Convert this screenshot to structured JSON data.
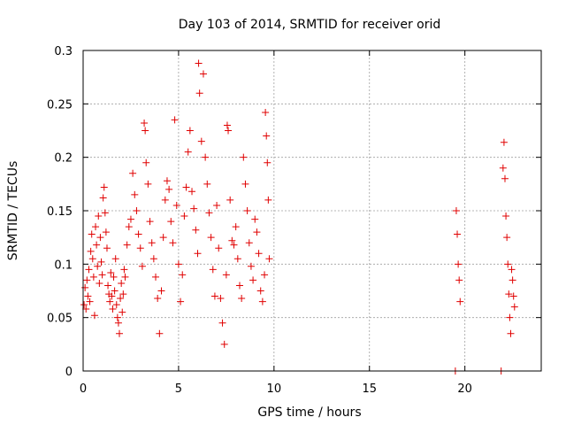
{
  "chart_data": {
    "type": "scatter",
    "title": "Day 103 of 2014, SRMTID for receiver orid",
    "xlabel": "GPS time / hours",
    "ylabel": "SRMTID / TECUs",
    "xlim": [
      0,
      24
    ],
    "ylim": [
      0,
      0.3
    ],
    "xticks": [
      "0",
      "5",
      "10",
      "15",
      "20"
    ],
    "yticks": [
      "0",
      "0.05",
      "0.1",
      "0.15",
      "0.2",
      "0.25",
      "0.3"
    ],
    "grid": true,
    "marker": "plus",
    "color": "#e00000",
    "series": [
      {
        "points": [
          [
            0.05,
            0.062
          ],
          [
            0.1,
            0.078
          ],
          [
            0.15,
            0.058
          ],
          [
            0.2,
            0.085
          ],
          [
            0.25,
            0.07
          ],
          [
            0.3,
            0.095
          ],
          [
            0.35,
            0.065
          ],
          [
            0.4,
            0.112
          ],
          [
            0.45,
            0.128
          ],
          [
            0.5,
            0.105
          ],
          [
            0.55,
            0.088
          ],
          [
            0.6,
            0.052
          ],
          [
            0.65,
            0.135
          ],
          [
            0.7,
            0.118
          ],
          [
            0.75,
            0.098
          ],
          [
            0.8,
            0.145
          ],
          [
            0.85,
            0.082
          ],
          [
            0.9,
            0.125
          ],
          [
            0.95,
            0.102
          ],
          [
            1.0,
            0.09
          ],
          [
            1.05,
            0.162
          ],
          [
            1.1,
            0.172
          ],
          [
            1.15,
            0.148
          ],
          [
            1.2,
            0.13
          ],
          [
            1.25,
            0.115
          ],
          [
            1.3,
            0.08
          ],
          [
            1.35,
            0.072
          ],
          [
            1.4,
            0.065
          ],
          [
            1.45,
            0.092
          ],
          [
            1.5,
            0.07
          ],
          [
            1.55,
            0.058
          ],
          [
            1.6,
            0.088
          ],
          [
            1.65,
            0.075
          ],
          [
            1.7,
            0.105
          ],
          [
            1.75,
            0.062
          ],
          [
            1.8,
            0.05
          ],
          [
            1.85,
            0.045
          ],
          [
            1.9,
            0.035
          ],
          [
            1.95,
            0.068
          ],
          [
            2.0,
            0.082
          ],
          [
            2.05,
            0.055
          ],
          [
            2.1,
            0.072
          ],
          [
            2.15,
            0.095
          ],
          [
            2.2,
            0.088
          ],
          [
            2.3,
            0.118
          ],
          [
            2.4,
            0.135
          ],
          [
            2.5,
            0.142
          ],
          [
            2.6,
            0.185
          ],
          [
            2.7,
            0.165
          ],
          [
            2.8,
            0.15
          ],
          [
            2.9,
            0.128
          ],
          [
            3.0,
            0.115
          ],
          [
            3.1,
            0.098
          ],
          [
            3.2,
            0.232
          ],
          [
            3.25,
            0.225
          ],
          [
            3.3,
            0.195
          ],
          [
            3.4,
            0.175
          ],
          [
            3.5,
            0.14
          ],
          [
            3.6,
            0.12
          ],
          [
            3.7,
            0.105
          ],
          [
            3.8,
            0.088
          ],
          [
            3.9,
            0.068
          ],
          [
            4.0,
            0.035
          ],
          [
            4.1,
            0.075
          ],
          [
            4.2,
            0.125
          ],
          [
            4.3,
            0.16
          ],
          [
            4.4,
            0.178
          ],
          [
            4.5,
            0.17
          ],
          [
            4.6,
            0.14
          ],
          [
            4.7,
            0.12
          ],
          [
            4.8,
            0.235
          ],
          [
            4.9,
            0.155
          ],
          [
            5.0,
            0.1
          ],
          [
            5.1,
            0.065
          ],
          [
            5.2,
            0.09
          ],
          [
            5.3,
            0.145
          ],
          [
            5.4,
            0.172
          ],
          [
            5.5,
            0.205
          ],
          [
            5.6,
            0.225
          ],
          [
            5.7,
            0.168
          ],
          [
            5.8,
            0.152
          ],
          [
            5.9,
            0.132
          ],
          [
            6.0,
            0.11
          ],
          [
            6.05,
            0.288
          ],
          [
            6.1,
            0.26
          ],
          [
            6.2,
            0.215
          ],
          [
            6.3,
            0.278
          ],
          [
            6.4,
            0.2
          ],
          [
            6.5,
            0.175
          ],
          [
            6.6,
            0.148
          ],
          [
            6.7,
            0.125
          ],
          [
            6.8,
            0.095
          ],
          [
            6.9,
            0.07
          ],
          [
            7.0,
            0.155
          ],
          [
            7.1,
            0.115
          ],
          [
            7.2,
            0.068
          ],
          [
            7.3,
            0.045
          ],
          [
            7.4,
            0.025
          ],
          [
            7.5,
            0.09
          ],
          [
            7.55,
            0.23
          ],
          [
            7.6,
            0.225
          ],
          [
            7.7,
            0.16
          ],
          [
            7.8,
            0.122
          ],
          [
            7.9,
            0.118
          ],
          [
            8.0,
            0.135
          ],
          [
            8.1,
            0.105
          ],
          [
            8.2,
            0.08
          ],
          [
            8.3,
            0.068
          ],
          [
            8.4,
            0.2
          ],
          [
            8.5,
            0.175
          ],
          [
            8.6,
            0.15
          ],
          [
            8.7,
            0.12
          ],
          [
            8.8,
            0.098
          ],
          [
            8.9,
            0.085
          ],
          [
            9.0,
            0.142
          ],
          [
            9.1,
            0.13
          ],
          [
            9.2,
            0.11
          ],
          [
            9.3,
            0.075
          ],
          [
            9.4,
            0.065
          ],
          [
            9.5,
            0.09
          ],
          [
            9.55,
            0.242
          ],
          [
            9.6,
            0.22
          ],
          [
            9.65,
            0.195
          ],
          [
            9.7,
            0.16
          ],
          [
            9.75,
            0.105
          ],
          [
            19.5,
            0.0
          ],
          [
            19.55,
            0.15
          ],
          [
            19.6,
            0.128
          ],
          [
            19.65,
            0.1
          ],
          [
            19.7,
            0.085
          ],
          [
            19.75,
            0.065
          ],
          [
            21.9,
            0.0
          ],
          [
            22.0,
            0.19
          ],
          [
            22.05,
            0.214
          ],
          [
            22.1,
            0.18
          ],
          [
            22.15,
            0.145
          ],
          [
            22.2,
            0.125
          ],
          [
            22.25,
            0.1
          ],
          [
            22.3,
            0.072
          ],
          [
            22.35,
            0.05
          ],
          [
            22.4,
            0.035
          ],
          [
            22.45,
            0.095
          ],
          [
            22.5,
            0.085
          ],
          [
            22.55,
            0.07
          ],
          [
            22.6,
            0.06
          ]
        ]
      }
    ]
  }
}
